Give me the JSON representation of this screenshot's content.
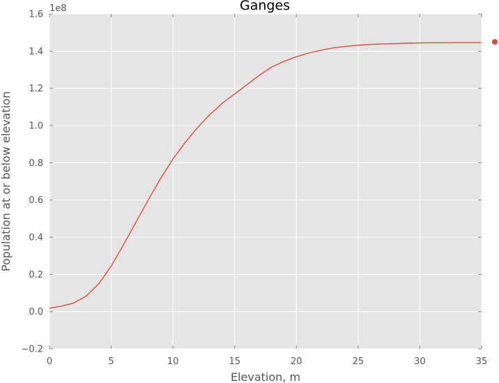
{
  "chart_data": {
    "type": "line",
    "title": "Ganges",
    "xlabel": "Elevation, m",
    "ylabel": "Population at or below elevation",
    "y_offset_label": "1e8",
    "xlim": [
      0,
      35
    ],
    "ylim": [
      -0.2,
      1.6
    ],
    "x_ticks": [
      0,
      5,
      10,
      15,
      20,
      25,
      30,
      35
    ],
    "x_tick_labels": [
      "0",
      "5",
      "10",
      "15",
      "20",
      "25",
      "30",
      "35"
    ],
    "y_ticks": [
      -0.2,
      0.0,
      0.2,
      0.4,
      0.6,
      0.8,
      1.0,
      1.2,
      1.4,
      1.6
    ],
    "y_tick_labels": [
      "−0.2",
      "0.0",
      "0.2",
      "0.4",
      "0.6",
      "0.8",
      "1.0",
      "1.2",
      "1.4",
      "1.6"
    ],
    "grid": true,
    "colors": {
      "series": "#e24a33",
      "plot_bg": "#e5e5e5",
      "grid": "#ffffff"
    },
    "series": [
      {
        "x": [
          0,
          1,
          2,
          3,
          4,
          5,
          6,
          7,
          8,
          9,
          10,
          11,
          12,
          13,
          14,
          15,
          16,
          17,
          18,
          19,
          20,
          21,
          22,
          23,
          24,
          25,
          26,
          27,
          28,
          29,
          30,
          31,
          32,
          33,
          34,
          35
        ],
        "y": [
          0.018,
          0.03,
          0.047,
          0.085,
          0.15,
          0.245,
          0.36,
          0.48,
          0.6,
          0.715,
          0.82,
          0.91,
          0.99,
          1.06,
          1.12,
          1.17,
          1.22,
          1.27,
          1.315,
          1.345,
          1.37,
          1.39,
          1.405,
          1.418,
          1.426,
          1.432,
          1.436,
          1.439,
          1.441,
          1.443,
          1.444,
          1.445,
          1.445,
          1.446,
          1.446,
          1.446
        ]
      }
    ],
    "legend_marker": {
      "position": "right of plot, at top line level",
      "color": "#e24a33"
    }
  }
}
